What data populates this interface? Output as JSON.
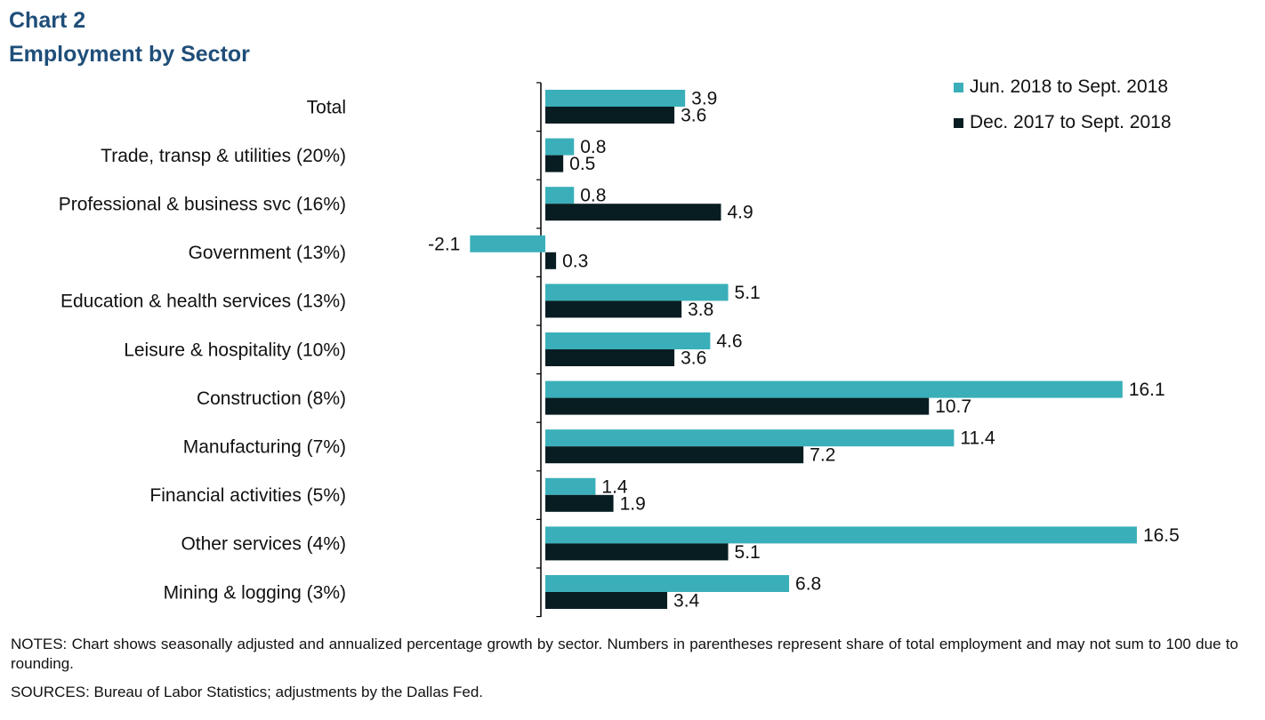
{
  "title_line1": "Chart 2",
  "title_line2": "Employment by Sector",
  "notes": "NOTES: Chart shows seasonally adjusted and annualized percentage growth by sector. Numbers in parentheses represent share of total employment and may not sum to 100 due to rounding.",
  "sources": "SOURCES: Bureau of Labor Statistics; adjustments by the Dallas Fed.",
  "colors": {
    "series1": "#3aafb9",
    "series2": "#071d22"
  },
  "chart_data": {
    "type": "bar",
    "orientation": "horizontal",
    "categories": [
      "Total",
      "Trade, transp & utilities (20%)",
      "Professional & business svc (16%)",
      "Government (13%)",
      "Education & health services (13%)",
      "Leisure & hospitality (10%)",
      "Construction (8%)",
      "Manufacturing (7%)",
      "Financial activities (5%)",
      "Other services (4%)",
      "Mining & logging (3%)"
    ],
    "series": [
      {
        "name": "Jun. 2018 to Sept. 2018",
        "values": [
          3.9,
          0.8,
          0.8,
          -2.1,
          5.1,
          4.6,
          16.1,
          11.4,
          1.4,
          16.5,
          6.8
        ]
      },
      {
        "name": "Dec. 2017 to Sept. 2018",
        "values": [
          3.6,
          0.5,
          4.9,
          0.3,
          3.8,
          3.6,
          10.7,
          7.2,
          1.9,
          5.1,
          3.4
        ]
      }
    ],
    "xlim": [
      -2.1,
      16.5
    ],
    "legend_position": "top-right",
    "grid": false
  }
}
